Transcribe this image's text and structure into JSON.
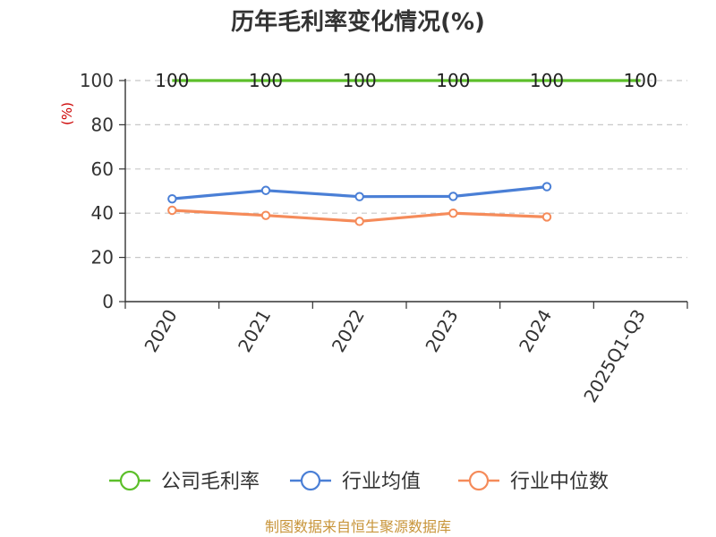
{
  "chart_data": {
    "type": "line",
    "title": "历年毛利率变化情况(%)",
    "ylabel": "(%)",
    "xlabel": "",
    "categories": [
      "2020",
      "2021",
      "2022",
      "2023",
      "2024",
      "2025Q1-Q3"
    ],
    "ylim": [
      0,
      100
    ],
    "yticks": [
      0,
      20,
      40,
      60,
      80,
      100
    ],
    "grid": true,
    "legend_position": "bottom",
    "series": [
      {
        "name": "公司毛利率",
        "color": "#5cbf2a",
        "values": [
          100,
          100,
          100,
          100,
          100,
          100
        ],
        "show_labels": true,
        "markers": false
      },
      {
        "name": "行业均值",
        "color": "#4a7fd6",
        "values": [
          46.5,
          50.3,
          47.5,
          47.6,
          52.0,
          null
        ],
        "show_labels": false,
        "markers": true
      },
      {
        "name": "行业中位数",
        "color": "#f58b5a",
        "values": [
          41.3,
          39.0,
          36.3,
          40.0,
          38.3,
          null
        ],
        "show_labels": false,
        "markers": true
      }
    ]
  },
  "source": "制图数据来自恒生聚源数据库"
}
